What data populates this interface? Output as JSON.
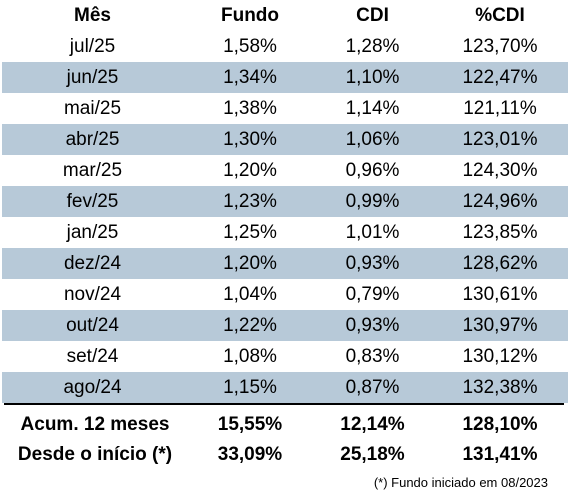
{
  "headers": {
    "month": "Mês",
    "fundo": "Fundo",
    "cdi": "CDI",
    "pct": "%CDI"
  },
  "rows": [
    {
      "month": "jul/25",
      "fundo": "1,58%",
      "cdi": "1,28%",
      "pct": "123,70%"
    },
    {
      "month": "jun/25",
      "fundo": "1,34%",
      "cdi": "1,10%",
      "pct": "122,47%"
    },
    {
      "month": "mai/25",
      "fundo": "1,38%",
      "cdi": "1,14%",
      "pct": "121,11%"
    },
    {
      "month": "abr/25",
      "fundo": "1,30%",
      "cdi": "1,06%",
      "pct": "123,01%"
    },
    {
      "month": "mar/25",
      "fundo": "1,20%",
      "cdi": "0,96%",
      "pct": "124,30%"
    },
    {
      "month": "fev/25",
      "fundo": "1,23%",
      "cdi": "0,99%",
      "pct": "124,96%"
    },
    {
      "month": "jan/25",
      "fundo": "1,25%",
      "cdi": "1,01%",
      "pct": "123,85%"
    },
    {
      "month": "dez/24",
      "fundo": "1,20%",
      "cdi": "0,93%",
      "pct": "128,62%"
    },
    {
      "month": "nov/24",
      "fundo": "1,04%",
      "cdi": "0,79%",
      "pct": "130,61%"
    },
    {
      "month": "out/24",
      "fundo": "1,22%",
      "cdi": "0,93%",
      "pct": "130,97%"
    },
    {
      "month": "set/24",
      "fundo": "1,08%",
      "cdi": "0,83%",
      "pct": "130,12%"
    },
    {
      "month": "ago/24",
      "fundo": "1,15%",
      "cdi": "0,87%",
      "pct": "132,38%"
    }
  ],
  "summary": [
    {
      "label": "Acum. 12 meses",
      "fundo": "15,55%",
      "cdi": "12,14%",
      "pct": "128,10%"
    },
    {
      "label": "Desde o início (*)",
      "fundo": "33,09%",
      "cdi": "25,18%",
      "pct": "131,41%"
    }
  ],
  "footnote": "(*) Fundo iniciado em 08/2023",
  "colors": {
    "stripe": "#b7c9d8"
  }
}
